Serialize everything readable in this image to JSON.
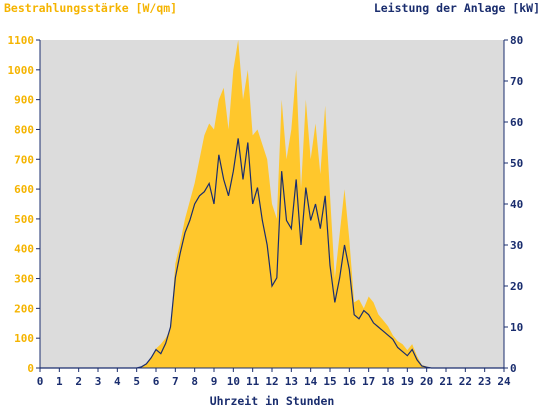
{
  "chart_data": {
    "type": "area",
    "title": "",
    "ylabel_left": "Bestrahlungsstärke [W/qm]",
    "ylabel_right": "Leistung der Anlage [kW]",
    "xlabel": "Uhrzeit in Stunden",
    "xlim": [
      0,
      24
    ],
    "ylim_left": [
      0,
      1100
    ],
    "ylim_right": [
      0,
      80
    ],
    "x_ticks": [
      "0",
      "1",
      "2",
      "3",
      "4",
      "5",
      "6",
      "7",
      "8",
      "9",
      "10",
      "11",
      "12",
      "13",
      "14",
      "15",
      "16",
      "17",
      "18",
      "19",
      "20",
      "21",
      "22",
      "23",
      "24"
    ],
    "y_ticks_left": [
      "0",
      "100",
      "200",
      "300",
      "400",
      "500",
      "600",
      "700",
      "800",
      "900",
      "1000",
      "1100"
    ],
    "y_ticks_right": [
      "0",
      "10",
      "20",
      "30",
      "40",
      "50",
      "60",
      "70",
      "80"
    ],
    "grid": false,
    "colors": {
      "plot_background": "#dcdcdc",
      "irradiance_fill": "#ffc72c",
      "power_line": "#1a2d6e",
      "left_axis_text": "#f5b400",
      "right_axis_text": "#1a2d6e",
      "axis": "#1a2d6e"
    },
    "series": [
      {
        "axis": "left",
        "style": "area",
        "x": [
          5.0,
          5.25,
          5.5,
          5.75,
          6.0,
          6.25,
          6.5,
          6.75,
          7.0,
          7.25,
          7.5,
          7.75,
          8.0,
          8.25,
          8.5,
          8.75,
          9.0,
          9.25,
          9.5,
          9.75,
          10.0,
          10.25,
          10.5,
          10.75,
          11.0,
          11.25,
          11.5,
          11.75,
          12.0,
          12.25,
          12.5,
          12.75,
          13.0,
          13.25,
          13.5,
          13.75,
          14.0,
          14.25,
          14.5,
          14.75,
          15.0,
          15.25,
          15.5,
          15.75,
          16.0,
          16.25,
          16.5,
          16.75,
          17.0,
          17.25,
          17.5,
          17.75,
          18.0,
          18.25,
          18.5,
          18.75,
          19.0,
          19.25,
          19.5,
          19.75,
          20.0,
          20.25
        ],
        "values": [
          0,
          5,
          15,
          35,
          65,
          80,
          100,
          130,
          350,
          420,
          500,
          560,
          620,
          700,
          780,
          820,
          800,
          900,
          940,
          800,
          1000,
          1100,
          900,
          1000,
          780,
          800,
          750,
          700,
          550,
          500,
          900,
          700,
          800,
          1000,
          600,
          900,
          700,
          820,
          650,
          880,
          580,
          300,
          450,
          600,
          430,
          220,
          230,
          200,
          240,
          220,
          180,
          160,
          140,
          110,
          90,
          80,
          60,
          80,
          40,
          10,
          5,
          0
        ]
      },
      {
        "axis": "right",
        "style": "line",
        "x": [
          5.0,
          5.25,
          5.5,
          5.75,
          6.0,
          6.25,
          6.5,
          6.75,
          7.0,
          7.25,
          7.5,
          7.75,
          8.0,
          8.25,
          8.5,
          8.75,
          9.0,
          9.25,
          9.5,
          9.75,
          10.0,
          10.25,
          10.5,
          10.75,
          11.0,
          11.25,
          11.5,
          11.75,
          12.0,
          12.25,
          12.5,
          12.75,
          13.0,
          13.25,
          13.5,
          13.75,
          14.0,
          14.25,
          14.5,
          14.75,
          15.0,
          15.25,
          15.5,
          15.75,
          16.0,
          16.25,
          16.5,
          16.75,
          17.0,
          17.25,
          17.5,
          17.75,
          18.0,
          18.25,
          18.5,
          18.75,
          19.0,
          19.25,
          19.5,
          19.75,
          20.0,
          20.25
        ],
        "values": [
          0,
          0.3,
          1,
          2.5,
          4.5,
          3.5,
          6,
          10,
          22,
          28,
          33,
          36,
          40,
          42,
          43,
          45,
          40,
          52,
          46,
          42,
          48,
          56,
          46,
          55,
          40,
          44,
          36,
          30,
          20,
          22,
          48,
          36,
          34,
          46,
          30,
          44,
          36,
          40,
          34,
          42,
          25,
          16,
          22,
          30,
          24,
          13,
          12,
          14,
          13,
          11,
          10,
          9,
          8,
          7,
          5,
          4,
          3,
          4.5,
          2,
          0.5,
          0.2,
          0
        ]
      }
    ]
  }
}
